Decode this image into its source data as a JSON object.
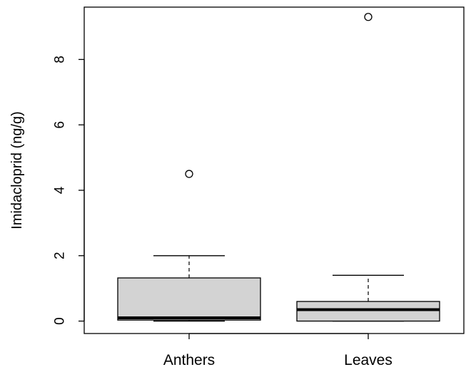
{
  "chart_data": {
    "type": "boxplot",
    "ylabel": "Imidacloprid (ng/g)",
    "ylim": [
      -0.38,
      9.6
    ],
    "yticks": [
      0,
      2,
      4,
      6,
      8
    ],
    "categories": [
      "Anthers",
      "Leaves"
    ],
    "series": [
      {
        "category": "Anthers",
        "whisker_low": 0,
        "q1": 0.03,
        "median": 0.1,
        "q3": 1.32,
        "whisker_high": 2.0,
        "outliers": [
          4.5
        ]
      },
      {
        "category": "Leaves",
        "whisker_low": 0,
        "q1": 0,
        "median": 0.35,
        "q3": 0.6,
        "whisker_high": 1.4,
        "outliers": [
          9.3
        ]
      }
    ],
    "box_fill": "#d3d3d3",
    "grid": false
  }
}
